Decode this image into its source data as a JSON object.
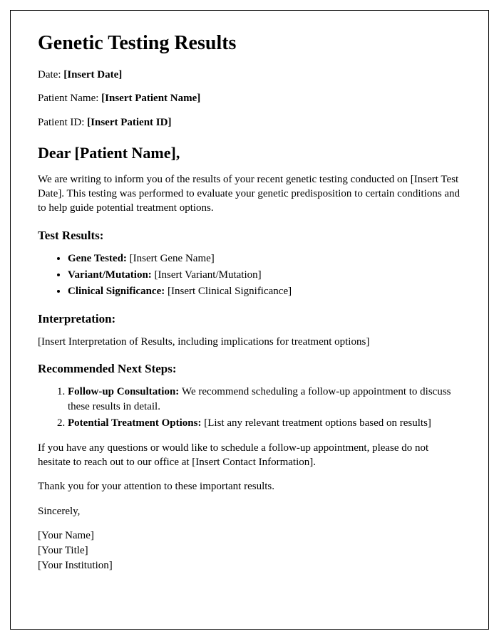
{
  "title": "Genetic Testing Results",
  "meta": {
    "date_label": "Date: ",
    "date_value": "[Insert Date]",
    "patient_name_label": "Patient Name: ",
    "patient_name_value": "[Insert Patient Name]",
    "patient_id_label": "Patient ID: ",
    "patient_id_value": "[Insert Patient ID]"
  },
  "salutation": "Dear [Patient Name],",
  "intro": "We are writing to inform you of the results of your recent genetic testing conducted on [Insert Test Date]. This testing was performed to evaluate your genetic predisposition to certain conditions and to help guide potential treatment options.",
  "results": {
    "heading": "Test Results:",
    "items": [
      {
        "label": "Gene Tested: ",
        "value": "[Insert Gene Name]"
      },
      {
        "label": "Variant/Mutation: ",
        "value": "[Insert Variant/Mutation]"
      },
      {
        "label": "Clinical Significance: ",
        "value": "[Insert Clinical Significance]"
      }
    ]
  },
  "interpretation": {
    "heading": "Interpretation:",
    "body": "[Insert Interpretation of Results, including implications for treatment options]"
  },
  "next_steps": {
    "heading": "Recommended Next Steps:",
    "items": [
      {
        "label": "Follow-up Consultation: ",
        "value": "We recommend scheduling a follow-up appointment to discuss these results in detail."
      },
      {
        "label": "Potential Treatment Options: ",
        "value": "[List any relevant treatment options based on results]"
      }
    ]
  },
  "contact": "If you have any questions or would like to schedule a follow-up appointment, please do not hesitate to reach out to our office at [Insert Contact Information].",
  "thanks": "Thank you for your attention to these important results.",
  "closing": "Sincerely,",
  "signature": {
    "name": "[Your Name]",
    "title": "[Your Title]",
    "institution": "[Your Institution]"
  }
}
